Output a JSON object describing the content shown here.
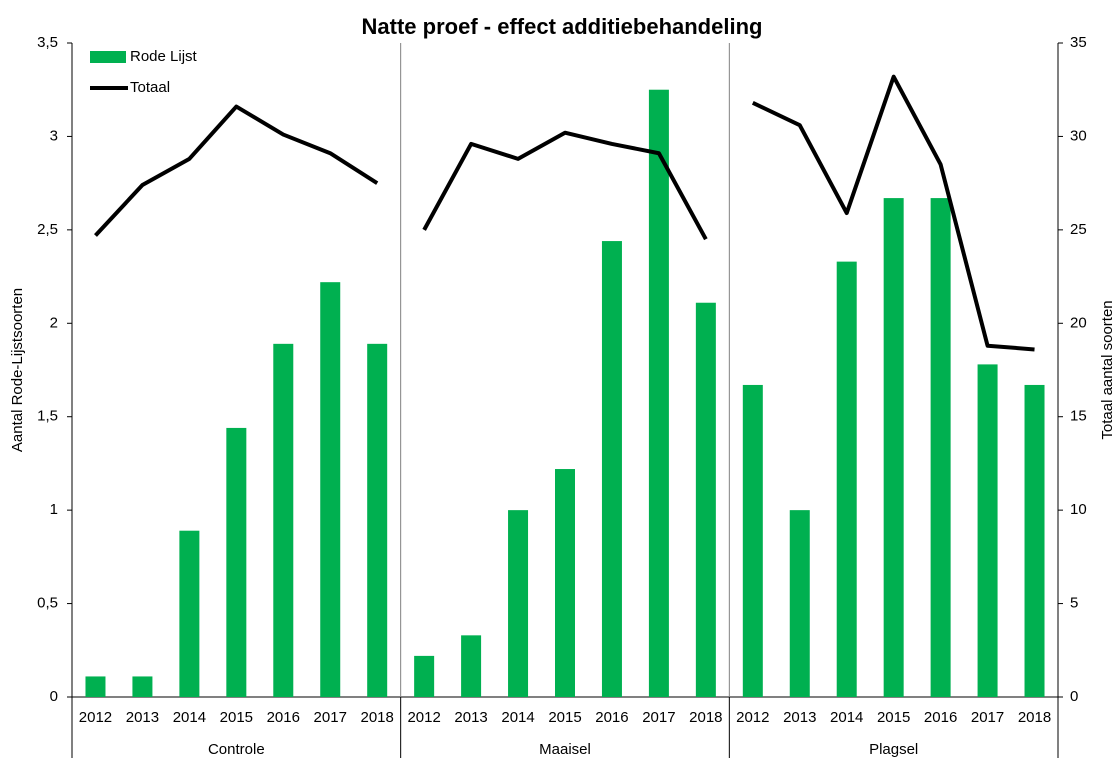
{
  "chart_data": {
    "type": "bar-line",
    "title": "Natte proef - effect additiebehandeling",
    "ylabel": "Aantal Rode-Lijstsoorten",
    "y2label": "Totaal aantal soorten",
    "groups": [
      {
        "name": "Controle",
        "categories": [
          "2012",
          "2013",
          "2014",
          "2015",
          "2016",
          "2017",
          "2018"
        ]
      },
      {
        "name": "Maaisel",
        "categories": [
          "2012",
          "2013",
          "2014",
          "2015",
          "2016",
          "2017",
          "2018"
        ]
      },
      {
        "name": "Plagsel",
        "categories": [
          "2012",
          "2013",
          "2014",
          "2015",
          "2016",
          "2017",
          "2018"
        ]
      }
    ],
    "series": [
      {
        "name": "Rode Lijst",
        "type": "bar",
        "color": "#00b050",
        "values": [
          [
            0.11,
            0.11,
            0.89,
            1.44,
            1.89,
            2.22,
            1.89
          ],
          [
            0.22,
            0.33,
            1.0,
            1.22,
            2.44,
            3.25,
            2.11
          ],
          [
            1.67,
            1.0,
            2.33,
            2.67,
            2.67,
            1.78,
            1.67
          ]
        ]
      },
      {
        "name": "Totaal",
        "type": "line",
        "axis": "y2",
        "color": "#000000",
        "values": [
          [
            24.7,
            27.4,
            28.8,
            31.6,
            30.1,
            29.1,
            27.5
          ],
          [
            25.0,
            29.6,
            28.8,
            30.2,
            29.6,
            29.1,
            24.5
          ],
          [
            31.8,
            30.6,
            25.9,
            33.2,
            28.5,
            18.8,
            18.6
          ]
        ]
      }
    ],
    "ylim": [
      0,
      3.5
    ],
    "yticks": [
      0,
      {
        "value": 0.5,
        "label": "0,5"
      },
      1,
      {
        "value": 1.5,
        "label": "1,5"
      },
      2,
      {
        "value": 2.5,
        "label": "2,5"
      },
      3,
      {
        "value": 3.5,
        "label": "3,5"
      }
    ],
    "y2lim": [
      0,
      35
    ],
    "y2ticks": [
      0,
      5,
      10,
      15,
      20,
      25,
      30,
      35
    ],
    "legend": "top-left"
  }
}
